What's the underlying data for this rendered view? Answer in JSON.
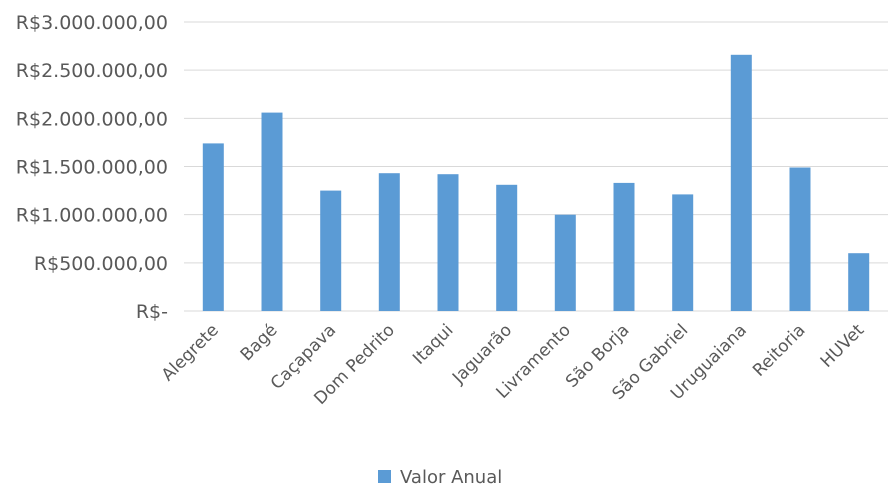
{
  "chart_data": {
    "type": "bar",
    "categories": [
      "Alegrete",
      "Bagé",
      "Caçapava",
      "Dom Pedrito",
      "Itaqui",
      "Jaguarão",
      "Livramento",
      "São Borja",
      "São Gabriel",
      "Uruguaiana",
      "Reitoria",
      "HUVet"
    ],
    "series": [
      {
        "name": "Valor Anual",
        "values": [
          1740000,
          2060000,
          1250000,
          1430000,
          1420000,
          1310000,
          1000000,
          1330000,
          1210000,
          2660000,
          1490000,
          600000
        ],
        "color": "#5b9bd5"
      }
    ],
    "yticks": [
      {
        "value": 0,
        "label": "R$-"
      },
      {
        "value": 500000,
        "label": "R$500.000,00"
      },
      {
        "value": 1000000,
        "label": "R$1.000.000,00"
      },
      {
        "value": 1500000,
        "label": "R$1.500.000,00"
      },
      {
        "value": 2000000,
        "label": "R$2.000.000,00"
      },
      {
        "value": 2500000,
        "label": "R$2.500.000,00"
      },
      {
        "value": 3000000,
        "label": "R$3.000.000,00"
      }
    ],
    "ylim": [
      0,
      3000000
    ],
    "grid": true,
    "legend_position": "bottom",
    "title": "",
    "xlabel": "",
    "ylabel": ""
  }
}
